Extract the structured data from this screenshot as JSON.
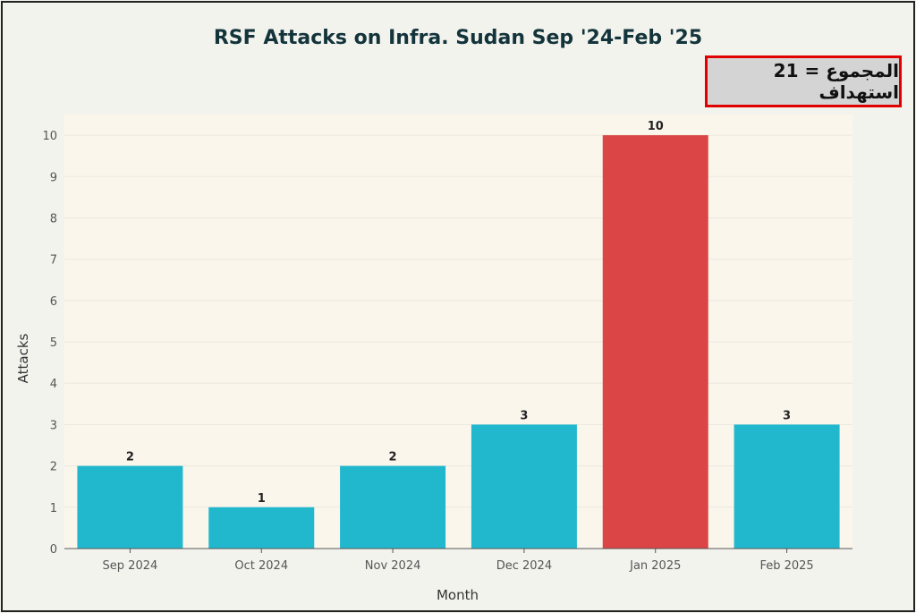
{
  "chart_data": {
    "type": "bar",
    "title": "RSF Attacks on Infra. Sudan Sep '24-Feb '25",
    "xlabel": "Month",
    "ylabel": "Attacks",
    "categories": [
      "Sep 2024",
      "Oct 2024",
      "Nov 2024",
      "Dec 2024",
      "Jan 2025",
      "Feb 2025"
    ],
    "values": [
      2,
      1,
      2,
      3,
      10,
      3
    ],
    "data_labels": [
      "2",
      "1",
      "2",
      "3",
      "10",
      "3"
    ],
    "yticks": [
      "0",
      "1",
      "2",
      "3",
      "4",
      "5",
      "6",
      "7",
      "8",
      "9",
      "10"
    ],
    "ylim": [
      0,
      10.5
    ],
    "grid": true,
    "bar_colors": [
      "#21b8cd",
      "#21b8cd",
      "#21b8cd",
      "#21b8cd",
      "#db4545",
      "#21b8cd"
    ]
  },
  "annotation": {
    "total_text": "المجموع = 21 استهداف"
  },
  "colors": {
    "plot_background": "#fbf6ec",
    "grid": "#ece8df",
    "axis": "#555555",
    "title": "#13343b"
  }
}
